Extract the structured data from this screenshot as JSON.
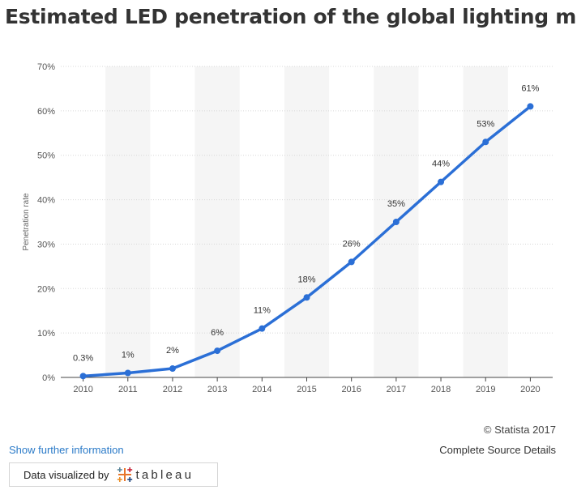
{
  "title": "Estimated LED penetration of the global lighting market",
  "copyright": "© Statista 2017",
  "source_details_label": "Complete Source Details",
  "show_info_label": "Show further information",
  "badge": {
    "text": "Data visualized by",
    "brand": "tableau"
  },
  "colors": {
    "line": "#2b6fd6",
    "band": "#f5f5f5",
    "grid": "#d8d8d8",
    "link": "#2a7ac8"
  },
  "chart_data": {
    "type": "line",
    "ylabel": "Penetration rate",
    "xlabel": "",
    "categories": [
      "2010",
      "2011",
      "2012",
      "2013",
      "2014",
      "2015",
      "2016",
      "2017",
      "2018",
      "2019",
      "2020"
    ],
    "values": [
      0.3,
      1,
      2,
      6,
      11,
      18,
      26,
      35,
      44,
      53,
      61
    ],
    "value_labels": [
      "0.3%",
      "1%",
      "2%",
      "6%",
      "11%",
      "18%",
      "26%",
      "35%",
      "44%",
      "53%",
      "61%"
    ],
    "yticks": [
      "0%",
      "10%",
      "20%",
      "30%",
      "40%",
      "50%",
      "60%",
      "70%"
    ],
    "ylim": [
      0,
      70
    ],
    "grid": true,
    "alternating_bands": true,
    "legend": "none"
  }
}
